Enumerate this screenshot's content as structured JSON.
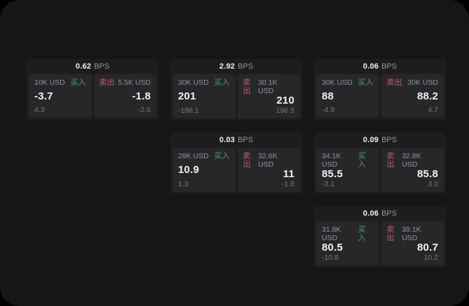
{
  "colors": {
    "surface": "#161616",
    "card": "#1d1d1f",
    "panel": "#27272a",
    "buy_green": "#4f9e6b",
    "sell_red": "#c05a6e",
    "text_primary": "#f2f2f2",
    "text_muted": "#93939a",
    "text_dim": "#77777c"
  },
  "labels": {
    "bps_unit": "BPS",
    "buy": "买入",
    "sell": "卖出"
  },
  "cards": [
    {
      "bps": "0.62",
      "buy": {
        "size": "10K USD",
        "value": "-3.7",
        "sub": "4.3"
      },
      "sell": {
        "size": "5.5K USD",
        "value": "-1.8",
        "sub": "-2.6"
      }
    },
    {
      "bps": "2.92",
      "buy": {
        "size": "30K USD",
        "value": "201",
        "sub": "-188.1"
      },
      "sell": {
        "size": "30.1K USD",
        "value": "210",
        "sub": "196.5"
      }
    },
    {
      "bps": "0.06",
      "buy": {
        "size": "30K USD",
        "value": "88",
        "sub": "-4.9"
      },
      "sell": {
        "size": "30K USD",
        "value": "88.2",
        "sub": "4.7"
      }
    },
    {
      "bps": "0.03",
      "buy": {
        "size": "28K USD",
        "value": "10.9",
        "sub": "1.3"
      },
      "sell": {
        "size": "32.6K USD",
        "value": "11",
        "sub": "-1.8"
      }
    },
    {
      "bps": "0.09",
      "buy": {
        "size": "34.1K USD",
        "value": "85.5",
        "sub": "-3.1"
      },
      "sell": {
        "size": "32.8K USD",
        "value": "85.8",
        "sub": "3.0"
      }
    },
    {
      "bps": "0.06",
      "buy": {
        "size": "31.8K USD",
        "value": "80.5",
        "sub": "-10.8"
      },
      "sell": {
        "size": "39.1K USD",
        "value": "80.7",
        "sub": "10.2"
      }
    }
  ]
}
